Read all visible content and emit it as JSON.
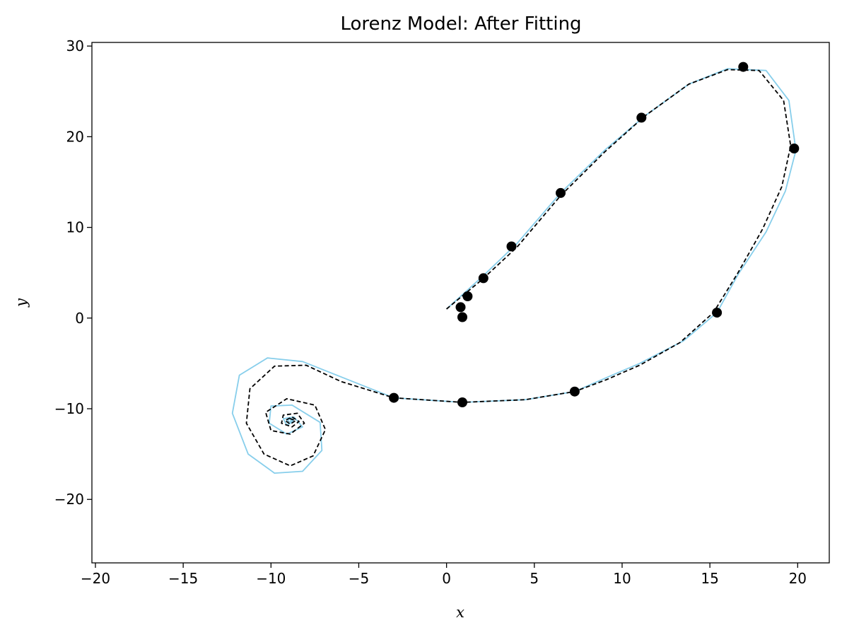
{
  "chart_data": {
    "type": "line",
    "title": "Lorenz Model: After Fitting",
    "xlabel": "x",
    "ylabel": "y",
    "xlim": [
      -20.2,
      21.8
    ],
    "ylim": [
      -27.0,
      30.4
    ],
    "x_ticks": [
      -20,
      -15,
      -10,
      -5,
      0,
      5,
      10,
      15,
      20
    ],
    "x_tick_labels": [
      "−20",
      "−15",
      "−10",
      "−5",
      "0",
      "5",
      "10",
      "15",
      "20"
    ],
    "y_ticks": [
      -20,
      -10,
      0,
      10,
      20,
      30
    ],
    "y_tick_labels": [
      "−20",
      "−10",
      "0",
      "10",
      "20",
      "30"
    ],
    "grid": false,
    "legend": "none",
    "colors": {
      "fitted": "#87ceeb",
      "reference": "#000000",
      "observations": "#000000"
    },
    "series": [
      {
        "style": "solid",
        "color": "#87ceeb",
        "points": [
          [
            0,
            1
          ],
          [
            2,
            4.5
          ],
          [
            4,
            8.2
          ],
          [
            6.5,
            13.8
          ],
          [
            9,
            18.5
          ],
          [
            11.3,
            22.3
          ],
          [
            13.8,
            25.8
          ],
          [
            16,
            27.5
          ],
          [
            18.2,
            27.3
          ],
          [
            19.5,
            24
          ],
          [
            19.9,
            18.5
          ],
          [
            19.3,
            14
          ],
          [
            18.2,
            9.5
          ],
          [
            16.6,
            4.8
          ],
          [
            15.4,
            0.6
          ],
          [
            13.5,
            -2.5
          ],
          [
            11,
            -5
          ],
          [
            9.2,
            -6.5
          ],
          [
            7.3,
            -8.1
          ],
          [
            4.5,
            -9
          ],
          [
            0.9,
            -9.3
          ],
          [
            -3,
            -8.8
          ],
          [
            -6,
            -6.5
          ],
          [
            -8.2,
            -4.8
          ],
          [
            -10.2,
            -4.4
          ],
          [
            -11.8,
            -6.3
          ],
          [
            -12.2,
            -10.5
          ],
          [
            -11.3,
            -15
          ],
          [
            -9.8,
            -17.1
          ],
          [
            -8.2,
            -16.9
          ],
          [
            -7.1,
            -14.6
          ],
          [
            -7.2,
            -11.5
          ],
          [
            -8.8,
            -9.6
          ],
          [
            -10,
            -9.7
          ],
          [
            -10.1,
            -11.6
          ],
          [
            -9.1,
            -12.8
          ],
          [
            -8.2,
            -12
          ],
          [
            -8.7,
            -10.9
          ],
          [
            -9.3,
            -11.1
          ],
          [
            -9.1,
            -11.8
          ],
          [
            -8.7,
            -11.4
          ],
          [
            -8.9,
            -11
          ],
          [
            -9.1,
            -11.4
          ],
          [
            -8.8,
            -11.5
          ],
          [
            -8.7,
            -11.1
          ],
          [
            -8.9,
            -11.2
          ],
          [
            -8.7,
            -11.5
          ],
          [
            -8.9,
            -11.3
          ]
        ]
      },
      {
        "style": "dashed",
        "color": "#000000",
        "points": [
          [
            0,
            1
          ],
          [
            2,
            4.2
          ],
          [
            4,
            7.8
          ],
          [
            6.5,
            13.5
          ],
          [
            9,
            18.3
          ],
          [
            11.3,
            22.3
          ],
          [
            13.8,
            25.8
          ],
          [
            16,
            27.4
          ],
          [
            17.8,
            27.3
          ],
          [
            19.2,
            24
          ],
          [
            19.6,
            19
          ],
          [
            19.1,
            14.5
          ],
          [
            18,
            9.8
          ],
          [
            16.6,
            5
          ],
          [
            15.2,
            0.6
          ],
          [
            13.3,
            -2.7
          ],
          [
            11,
            -5.2
          ],
          [
            9.1,
            -6.8
          ],
          [
            7.3,
            -8.1
          ],
          [
            4.5,
            -9
          ],
          [
            0.9,
            -9.3
          ],
          [
            -3,
            -8.8
          ],
          [
            -6,
            -7
          ],
          [
            -8,
            -5.2
          ],
          [
            -9.8,
            -5.3
          ],
          [
            -11.2,
            -7.8
          ],
          [
            -11.4,
            -11.6
          ],
          [
            -10.4,
            -15
          ],
          [
            -8.9,
            -16.3
          ],
          [
            -7.6,
            -15.2
          ],
          [
            -6.9,
            -12.3
          ],
          [
            -7.5,
            -9.6
          ],
          [
            -9.1,
            -8.9
          ],
          [
            -10.3,
            -10.4
          ],
          [
            -10,
            -12.4
          ],
          [
            -8.9,
            -12.8
          ],
          [
            -8.1,
            -11.6
          ],
          [
            -8.5,
            -10.5
          ],
          [
            -9.3,
            -10.7
          ],
          [
            -9.4,
            -11.6
          ],
          [
            -8.8,
            -12
          ],
          [
            -8.4,
            -11.4
          ],
          [
            -8.8,
            -10.9
          ],
          [
            -9.2,
            -11.3
          ],
          [
            -8.9,
            -11.7
          ],
          [
            -8.6,
            -11.3
          ],
          [
            -8.9,
            -11.1
          ],
          [
            -9,
            -11.4
          ]
        ]
      }
    ],
    "observations": [
      [
        0.8,
        1.2
      ],
      [
        0.9,
        0.1
      ],
      [
        1.2,
        2.4
      ],
      [
        2.1,
        4.4
      ],
      [
        3.7,
        7.9
      ],
      [
        6.5,
        13.8
      ],
      [
        11.1,
        22.1
      ],
      [
        16.9,
        27.7
      ],
      [
        19.8,
        18.7
      ],
      [
        15.4,
        0.6
      ],
      [
        7.3,
        -8.1
      ],
      [
        0.9,
        -9.3
      ],
      [
        -3.0,
        -8.8
      ]
    ]
  }
}
